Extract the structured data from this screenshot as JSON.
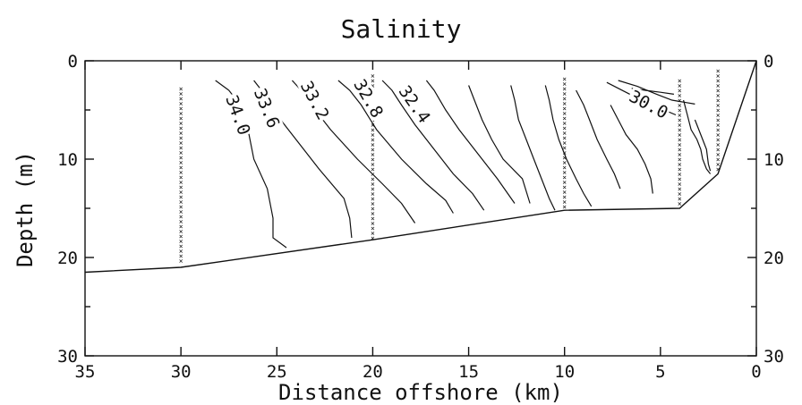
{
  "chart_data": {
    "type": "line",
    "title": "Salinity",
    "xlabel": "Distance offshore (km)",
    "ylabel": "Depth (m)",
    "xlim": [
      35,
      0
    ],
    "ylim": [
      0,
      30
    ],
    "x_reversed": true,
    "y_reversed": true,
    "x_ticks": [
      35,
      30,
      25,
      20,
      15,
      10,
      5,
      0
    ],
    "y_ticks": [
      0,
      10,
      20,
      30
    ],
    "y_ticks_right": true,
    "grid": false,
    "bottom_profile": {
      "name": "Bottom",
      "x": [
        35,
        30,
        20,
        10,
        4,
        2,
        0
      ],
      "y": [
        21.5,
        21,
        18.2,
        15.2,
        15,
        11.5,
        0
      ]
    },
    "stations": [
      {
        "x": 30,
        "y_min": 2.8,
        "y_max": 20.6
      },
      {
        "x": 20,
        "y_min": 1.5,
        "y_max": 18.3
      },
      {
        "x": 10,
        "y_min": 1.8,
        "y_max": 15.0
      },
      {
        "x": 4,
        "y_min": 2.0,
        "y_max": 14.8
      },
      {
        "x": 2,
        "y_min": 1.0,
        "y_max": 11.2
      }
    ],
    "contours": [
      {
        "label": "34.0",
        "x": [
          28.2,
          27.5,
          26.9,
          26.5,
          26.2,
          25.5,
          25.2,
          25.2,
          24.5
        ],
        "y": [
          2,
          3,
          4.5,
          7,
          10,
          13,
          16,
          18,
          19
        ]
      },
      {
        "label": "33.6",
        "x": [
          26.2,
          25.6,
          25.0,
          24.2,
          22.8,
          21.5,
          21.2,
          21.1
        ],
        "y": [
          2,
          3.5,
          5.5,
          7.5,
          11,
          14,
          16,
          18
        ]
      },
      {
        "label": "33.2",
        "x": [
          24.2,
          23.5,
          23.0,
          22.2,
          20.8,
          19.5,
          18.5,
          17.8
        ],
        "y": [
          2,
          3.5,
          5,
          7,
          10,
          12.5,
          14.5,
          16.5
        ]
      },
      {
        "label": "32.8",
        "x": [
          21.8,
          21.2,
          20.6,
          19.8,
          18.5,
          17.2,
          16.2,
          15.8
        ],
        "y": [
          2,
          3,
          4.5,
          7,
          10,
          12.5,
          14.2,
          15.5
        ]
      },
      {
        "label": "32.4",
        "x": [
          19.5,
          19.0,
          18.5,
          17.8,
          16.8,
          15.8,
          14.8,
          14.2
        ],
        "y": [
          2,
          3,
          4.5,
          6.5,
          9,
          11.5,
          13.5,
          15.2
        ]
      },
      {
        "label": "",
        "x": [
          17.2,
          16.8,
          16.2,
          15.5,
          14.5,
          13.5,
          12.6
        ],
        "y": [
          2,
          3,
          5,
          7,
          9.5,
          12,
          14.5
        ]
      },
      {
        "label": "",
        "x": [
          15.0,
          14.7,
          14.3,
          13.8,
          13.2,
          12.2,
          11.8
        ],
        "y": [
          2.5,
          4,
          6,
          8,
          10,
          12,
          14.5
        ]
      },
      {
        "label": "",
        "x": [
          12.8,
          12.6,
          12.4,
          12.0,
          11.6,
          11.2,
          10.8,
          10.5
        ],
        "y": [
          2.5,
          4,
          6,
          8,
          10,
          12,
          14,
          15.2
        ]
      },
      {
        "label": "",
        "x": [
          11.0,
          10.8,
          10.6,
          10.3,
          9.9,
          9.4,
          9.0,
          8.6
        ],
        "y": [
          2.5,
          4,
          6,
          8,
          10,
          12,
          13.5,
          14.8
        ]
      },
      {
        "label": "",
        "x": [
          9.4,
          9.0,
          8.7,
          8.3,
          7.8,
          7.4,
          7.1
        ],
        "y": [
          3,
          4.5,
          6,
          8,
          10,
          11.5,
          13
        ]
      },
      {
        "label": "",
        "x": [
          7.6,
          7.2,
          6.8,
          6.2,
          5.8,
          5.5,
          5.4
        ],
        "y": [
          4.5,
          6,
          7.5,
          9,
          10.5,
          12,
          13.5
        ]
      },
      {
        "label": "30.0",
        "x": [
          7.8,
          6.8,
          5.8,
          4.8,
          4.2
        ],
        "y": [
          2.2,
          3.2,
          4.2,
          5.0,
          5.5
        ]
      },
      {
        "label": "",
        "x": [
          7.2,
          6.2,
          5.2,
          4.4,
          3.8,
          3.2
        ],
        "y": [
          2.0,
          2.6,
          3.4,
          4.0,
          4.2,
          4.4
        ]
      },
      {
        "label": "",
        "x": [
          6.5,
          5.8,
          5.0,
          4.3
        ],
        "y": [
          2.8,
          3.0,
          3.2,
          3.4
        ]
      },
      {
        "label": "",
        "x": [
          3.8,
          3.6,
          3.4,
          3.1,
          2.9,
          2.8,
          2.6,
          2.4
        ],
        "y": [
          4.0,
          5.5,
          7,
          8,
          9,
          10,
          11,
          11.5
        ]
      },
      {
        "label": "",
        "x": [
          3.2,
          3.0,
          2.8,
          2.6,
          2.5,
          2.4
        ],
        "y": [
          6,
          7,
          8,
          9,
          10.5,
          11.2
        ]
      }
    ],
    "contour_label_positions": [
      {
        "label": "34.0",
        "x": 27.0,
        "y": 5.5,
        "angle": 70
      },
      {
        "label": "33.6",
        "x": 25.5,
        "y": 4.8,
        "angle": 68
      },
      {
        "label": "33.2",
        "x": 23.0,
        "y": 4.0,
        "angle": 62
      },
      {
        "label": "32.8",
        "x": 20.2,
        "y": 3.8,
        "angle": 60
      },
      {
        "label": "32.4",
        "x": 17.8,
        "y": 4.4,
        "angle": 55
      },
      {
        "label": "30.0",
        "x": 5.6,
        "y": 4.4,
        "angle": 28
      }
    ]
  }
}
